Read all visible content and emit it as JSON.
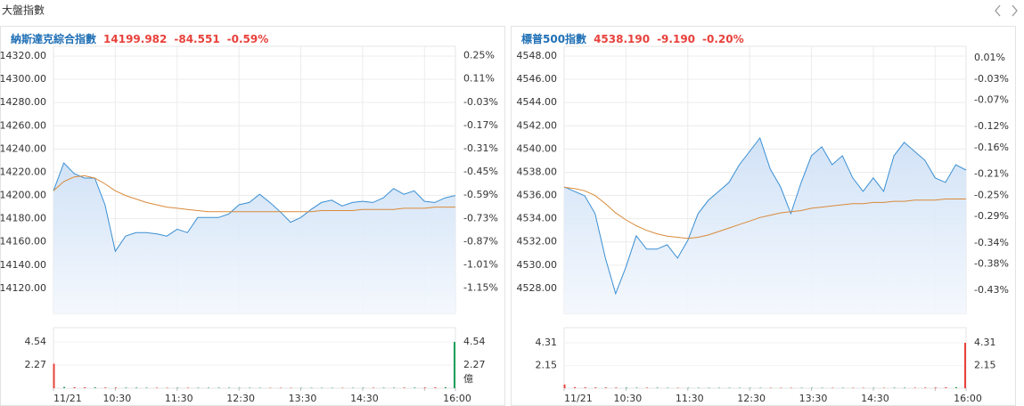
{
  "header": {
    "title": "大盤指數"
  },
  "chart_data": [
    {
      "type": "line",
      "title": "納斯達克綜合指數",
      "last": "14199.982",
      "change": "-84.551",
      "change_pct": "-0.59%",
      "title_color": "#1f6fb5",
      "up_color": "#18a05a",
      "down_color": "#e8413b",
      "x": [
        "09:30",
        "09:40",
        "09:50",
        "10:00",
        "10:10",
        "10:20",
        "10:30",
        "10:40",
        "10:50",
        "11:00",
        "11:10",
        "11:20",
        "11:30",
        "11:40",
        "11:50",
        "12:00",
        "12:10",
        "12:20",
        "12:30",
        "12:40",
        "12:50",
        "13:00",
        "13:10",
        "13:20",
        "13:30",
        "13:40",
        "13:50",
        "14:00",
        "14:10",
        "14:20",
        "14:30",
        "14:40",
        "14:50",
        "15:00",
        "15:10",
        "15:20",
        "15:30",
        "15:40",
        "15:50",
        "16:00"
      ],
      "series": [
        {
          "color": "#3a8fd3",
          "area": true,
          "values": [
            14204,
            14228,
            14219,
            14215,
            14215,
            14192,
            14152,
            14165,
            14168,
            14168,
            14167,
            14165,
            14171,
            14168,
            14181,
            14181,
            14181,
            14184,
            14192,
            14194,
            14201,
            14194,
            14186,
            14177,
            14181,
            14188,
            14194,
            14196,
            14191,
            14194,
            14195,
            14194,
            14198,
            14206,
            14201,
            14204,
            14195,
            14194,
            14198,
            14199.98
          ]
        },
        {
          "color": "#d98a3a",
          "area": false,
          "values": [
            14204,
            14212,
            14216,
            14217,
            14215,
            14210,
            14204,
            14200,
            14197,
            14194,
            14192,
            14190,
            14189,
            14188,
            14187,
            14186,
            14186,
            14186,
            14186,
            14186,
            14186,
            14186,
            14186,
            14186,
            14186,
            14186,
            14187,
            14187,
            14187,
            14187,
            14188,
            14188,
            14188,
            14188,
            14189,
            14189,
            14189,
            14190,
            14190,
            14190
          ]
        }
      ],
      "xticks": [
        {
          "value": "09:30",
          "label": "11/21"
        },
        "10:30",
        "11:30",
        "12:30",
        "13:30",
        "14:30",
        {
          "value": "15:30",
          "label": null
        },
        "16:00"
      ],
      "ylim": [
        14098.5,
        14328.4
      ],
      "yticks": [
        {
          "value": 14320,
          "label": "14320.00"
        },
        {
          "value": 14300,
          "label": "14300.00"
        },
        {
          "value": 14280,
          "label": "14280.00"
        },
        {
          "value": 14260,
          "label": "14260.00"
        },
        {
          "value": 14240,
          "label": "14240.00"
        },
        {
          "value": 14220,
          "label": "14220.00"
        },
        {
          "value": 14200,
          "label": "14200.00"
        },
        {
          "value": 14180,
          "label": "14180.00"
        },
        {
          "value": 14160,
          "label": "14160.00"
        },
        {
          "value": 14140,
          "label": "14140.00"
        },
        {
          "value": 14120,
          "label": "14120.00"
        }
      ],
      "y2lim": [
        -1.302,
        0.307
      ],
      "y2ticks": [
        {
          "value": 0.25,
          "label": "0.25%"
        },
        {
          "value": 0.11,
          "label": "0.11%"
        },
        {
          "value": -0.03,
          "label": "-0.03%"
        },
        {
          "value": -0.17,
          "label": "-0.17%"
        },
        {
          "value": -0.31,
          "label": "-0.31%"
        },
        {
          "value": -0.45,
          "label": "-0.45%"
        },
        {
          "value": -0.59,
          "label": "-0.59%"
        },
        {
          "value": -0.73,
          "label": "-0.73%"
        },
        {
          "value": -0.87,
          "label": "-0.87%"
        },
        {
          "value": -1.01,
          "label": "-1.01%"
        },
        {
          "value": -1.15,
          "label": "-1.15%"
        }
      ],
      "grid": true,
      "volume": {
        "type": "bar",
        "unit": "億",
        "ylim": [
          0,
          5.94
        ],
        "yticks": [
          4.54,
          2.27
        ],
        "values": [
          2.4,
          0.12,
          0.1,
          0.09,
          0.08,
          0.07,
          0.07,
          0.06,
          0.06,
          0.05,
          0.05,
          0.05,
          0.05,
          0.05,
          0.05,
          0.05,
          0.05,
          0.05,
          0.05,
          0.05,
          0.04,
          0.04,
          0.04,
          0.04,
          0.04,
          0.04,
          0.04,
          0.04,
          0.04,
          0.04,
          0.05,
          0.05,
          0.05,
          0.05,
          0.06,
          0.06,
          0.07,
          0.08,
          0.1,
          4.54
        ],
        "colors": [
          "#e8413b",
          "#18a05a",
          "#e8413b",
          "#e8413b",
          "#18a05a",
          "#e8413b",
          "#e8413b",
          "#18a05a",
          "#18a05a",
          "#18a05a",
          "#e8413b",
          "#e8413b",
          "#18a05a",
          "#e8413b",
          "#18a05a",
          "#18a05a",
          "#18a05a",
          "#18a05a",
          "#18a05a",
          "#18a05a",
          "#18a05a",
          "#e8413b",
          "#e8413b",
          "#e8413b",
          "#18a05a",
          "#18a05a",
          "#18a05a",
          "#18a05a",
          "#e8413b",
          "#18a05a",
          "#18a05a",
          "#e8413b",
          "#18a05a",
          "#18a05a",
          "#e8413b",
          "#18a05a",
          "#e8413b",
          "#e8413b",
          "#18a05a",
          "#18a05a"
        ]
      }
    },
    {
      "type": "line",
      "title": "標普500指數",
      "last": "4538.190",
      "change": "-9.190",
      "change_pct": "-0.20%",
      "title_color": "#1f6fb5",
      "up_color": "#18a05a",
      "down_color": "#e8413b",
      "x": [
        "09:30",
        "09:40",
        "09:50",
        "10:00",
        "10:10",
        "10:20",
        "10:30",
        "10:40",
        "10:50",
        "11:00",
        "11:10",
        "11:20",
        "11:30",
        "11:40",
        "11:50",
        "12:00",
        "12:10",
        "12:20",
        "12:30",
        "12:40",
        "12:50",
        "13:00",
        "13:10",
        "13:20",
        "13:30",
        "13:40",
        "13:50",
        "14:00",
        "14:10",
        "14:20",
        "14:30",
        "14:40",
        "14:50",
        "15:00",
        "15:10",
        "15:20",
        "15:30",
        "15:40",
        "15:50",
        "16:00"
      ],
      "series": [
        {
          "color": "#3a8fd3",
          "area": true,
          "values": [
            4536.74,
            4536.36,
            4535.97,
            4534.44,
            4530.61,
            4527.55,
            4529.85,
            4532.53,
            4531.38,
            4531.38,
            4531.76,
            4530.61,
            4532.14,
            4534.44,
            4535.59,
            4536.36,
            4537.12,
            4538.65,
            4539.8,
            4540.95,
            4538.27,
            4536.74,
            4534.44,
            4537.12,
            4539.42,
            4540.19,
            4538.65,
            4539.42,
            4537.51,
            4536.36,
            4537.51,
            4536.36,
            4539.42,
            4540.57,
            4539.8,
            4539.04,
            4537.51,
            4537.12,
            4538.65,
            4538.19
          ]
        },
        {
          "color": "#d98a3a",
          "area": false,
          "values": [
            4536.7,
            4536.6,
            4536.4,
            4536.0,
            4535.3,
            4534.5,
            4533.9,
            4533.4,
            4533.0,
            4532.7,
            4532.5,
            4532.4,
            4532.3,
            4532.4,
            4532.6,
            4532.9,
            4533.2,
            4533.5,
            4533.8,
            4534.1,
            4534.3,
            4534.5,
            4534.6,
            4534.7,
            4534.9,
            4535.0,
            4535.1,
            4535.2,
            4535.3,
            4535.3,
            4535.4,
            4535.4,
            4535.5,
            4535.5,
            4535.6,
            4535.6,
            4535.6,
            4535.7,
            4535.7,
            4535.7
          ]
        }
      ],
      "xticks": [
        {
          "value": "09:30",
          "label": "11/21"
        },
        "10:30",
        "11:30",
        "12:30",
        "13:30",
        "14:30",
        {
          "value": "15:30",
          "label": null
        },
        "16:00"
      ],
      "ylim": [
        4525.85,
        4548.84
      ],
      "yticks": [
        {
          "value": 4548,
          "label": "4548.00"
        },
        {
          "value": 4546,
          "label": "4546.00"
        },
        {
          "value": 4544,
          "label": "4544.00"
        },
        {
          "value": 4542,
          "label": "4542.00"
        },
        {
          "value": 4540,
          "label": "4540.00"
        },
        {
          "value": 4538,
          "label": "4538.00"
        },
        {
          "value": 4536,
          "label": "4536.00"
        },
        {
          "value": 4534,
          "label": "4534.00"
        },
        {
          "value": 4532,
          "label": "4532.00"
        },
        {
          "value": 4530,
          "label": "4530.00"
        },
        {
          "value": 4528,
          "label": "4528.00"
        }
      ],
      "y2lim": [
        -0.4735,
        0.0321
      ],
      "y2ticks": [
        {
          "value": 0.01,
          "label": "0.01%"
        },
        {
          "value": -0.03,
          "label": "-0.03%"
        },
        {
          "value": -0.07,
          "label": "-0.07%"
        },
        {
          "value": -0.12,
          "label": "-0.12%"
        },
        {
          "value": -0.16,
          "label": "-0.16%"
        },
        {
          "value": -0.21,
          "label": "-0.21%"
        },
        {
          "value": -0.25,
          "label": "-0.25%"
        },
        {
          "value": -0.29,
          "label": "-0.29%"
        },
        {
          "value": -0.34,
          "label": "-0.34%"
        },
        {
          "value": -0.38,
          "label": "-0.38%"
        },
        {
          "value": -0.43,
          "label": "-0.43%"
        }
      ],
      "grid": true,
      "volume": {
        "type": "bar",
        "ylim": [
          0,
          5.75
        ],
        "yticks": [
          4.31,
          2.15
        ],
        "values": [
          0.35,
          0.1,
          0.08,
          0.07,
          0.07,
          0.06,
          0.06,
          0.05,
          0.05,
          0.05,
          0.04,
          0.04,
          0.04,
          0.04,
          0.04,
          0.04,
          0.04,
          0.04,
          0.04,
          0.04,
          0.04,
          0.04,
          0.04,
          0.04,
          0.04,
          0.04,
          0.04,
          0.04,
          0.04,
          0.04,
          0.04,
          0.04,
          0.05,
          0.05,
          0.05,
          0.06,
          0.07,
          0.08,
          0.1,
          4.31
        ],
        "colors": [
          "#e8413b",
          "#e8413b",
          "#e8413b",
          "#e8413b",
          "#e8413b",
          "#e8413b",
          "#18a05a",
          "#18a05a",
          "#e8413b",
          "#18a05a",
          "#18a05a",
          "#e8413b",
          "#18a05a",
          "#18a05a",
          "#18a05a",
          "#18a05a",
          "#18a05a",
          "#18a05a",
          "#18a05a",
          "#18a05a",
          "#e8413b",
          "#e8413b",
          "#e8413b",
          "#18a05a",
          "#18a05a",
          "#18a05a",
          "#e8413b",
          "#18a05a",
          "#e8413b",
          "#e8413b",
          "#18a05a",
          "#e8413b",
          "#18a05a",
          "#18a05a",
          "#e8413b",
          "#e8413b",
          "#e8413b",
          "#e8413b",
          "#18a05a",
          "#e8413b"
        ]
      }
    }
  ]
}
